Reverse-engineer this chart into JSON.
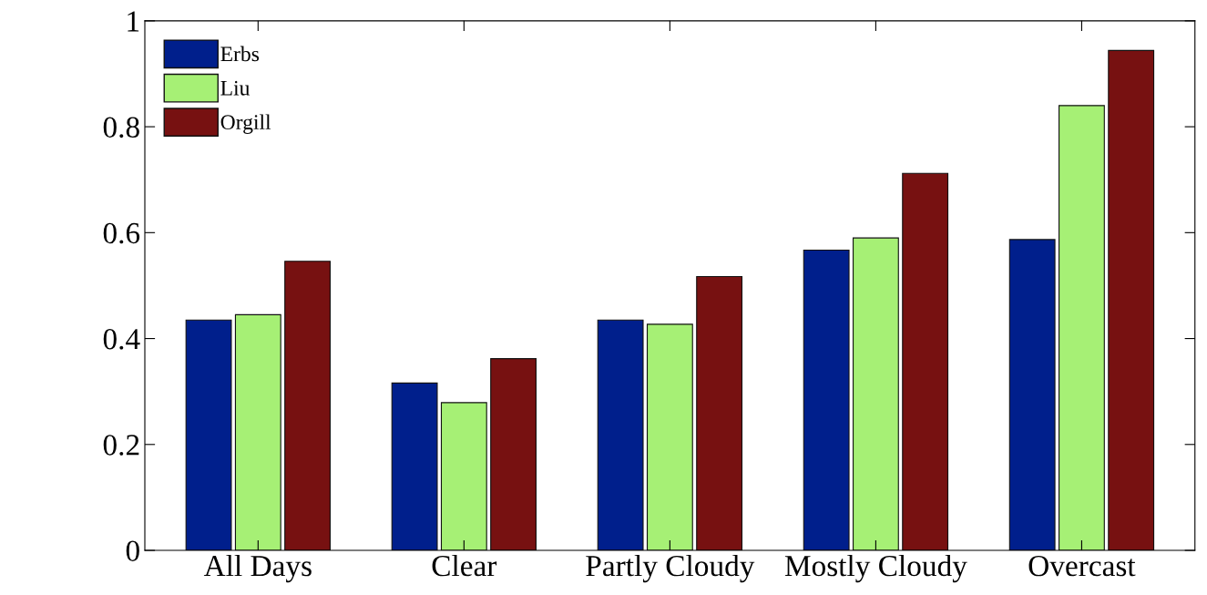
{
  "chart_data": {
    "type": "bar",
    "categories": [
      "All Days",
      "Clear",
      "Partly Cloudy",
      "Mostly Cloudy",
      "Overcast"
    ],
    "series": [
      {
        "name": "Erbs",
        "color": "#001f8c",
        "values": [
          0.435,
          0.316,
          0.435,
          0.567,
          0.587
        ]
      },
      {
        "name": "Liu",
        "color": "#a6f075",
        "values": [
          0.445,
          0.279,
          0.427,
          0.59,
          0.84
        ]
      },
      {
        "name": "Orgill",
        "color": "#771111",
        "values": [
          0.546,
          0.362,
          0.517,
          0.712,
          0.944
        ]
      }
    ],
    "ylim": [
      0,
      1
    ],
    "yticks": [
      0,
      0.2,
      0.4,
      0.6,
      0.8,
      1
    ],
    "grid": false,
    "legend": "top left"
  }
}
